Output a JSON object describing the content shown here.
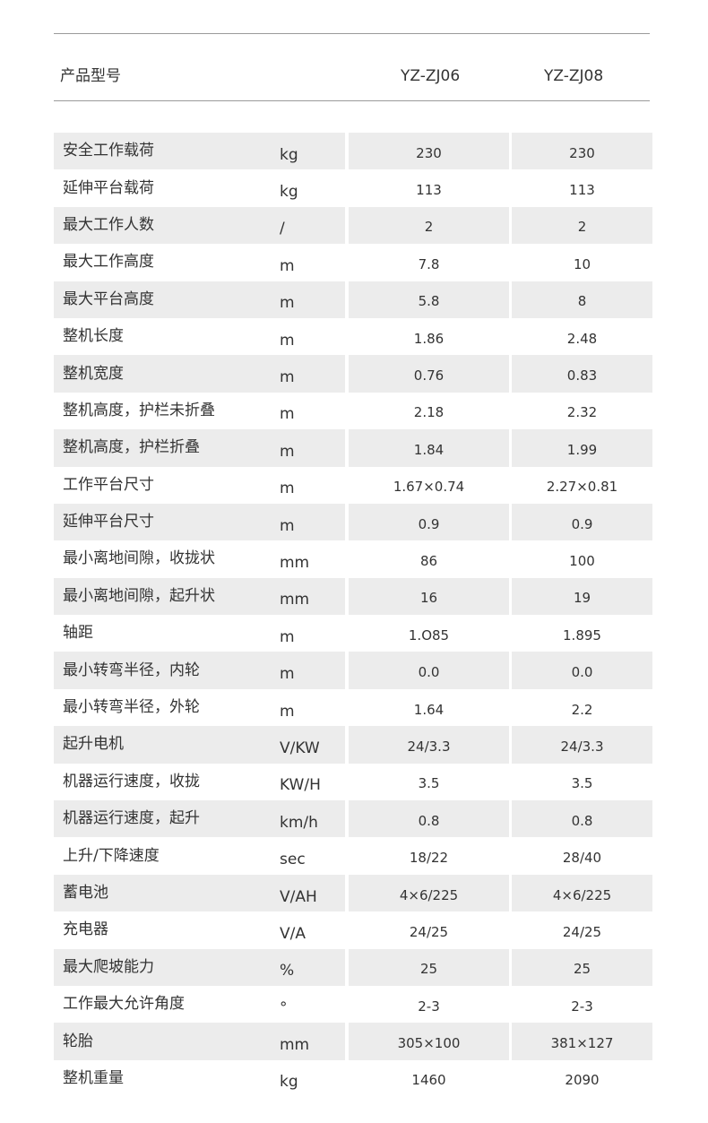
{
  "header": {
    "label": "产品型号",
    "models": [
      "YZ-ZJ06",
      "YZ-ZJ08"
    ]
  },
  "rows": [
    {
      "name": "安全工作载荷",
      "unit": "kg",
      "v1": "230",
      "v2": "230"
    },
    {
      "name": "延伸平台载荷",
      "unit": "kg",
      "v1": "113",
      "v2": "113"
    },
    {
      "name": "最大工作人数",
      "unit": "/",
      "v1": "2",
      "v2": "2"
    },
    {
      "name": "最大工作高度",
      "unit": "m",
      "v1": "7.8",
      "v2": "10"
    },
    {
      "name": "最大平台高度",
      "unit": "m",
      "v1": "5.8",
      "v2": "8"
    },
    {
      "name": "整机长度",
      "unit": "m",
      "v1": "1.86",
      "v2": "2.48"
    },
    {
      "name": "整机宽度",
      "unit": "m",
      "v1": "0.76",
      "v2": "0.83"
    },
    {
      "name": "整机高度，护栏未折叠",
      "unit": "m",
      "v1": "2.18",
      "v2": "2.32"
    },
    {
      "name": "整机高度，护栏折叠",
      "unit": "m",
      "v1": "1.84",
      "v2": "1.99"
    },
    {
      "name": "工作平台尺寸",
      "unit": "m",
      "v1": "1.67×0.74",
      "v2": "2.27×0.81"
    },
    {
      "name": "延伸平台尺寸",
      "unit": "m",
      "v1": "0.9",
      "v2": "0.9"
    },
    {
      "name": "最小离地间隙，收拢状",
      "unit": "mm",
      "v1": "86",
      "v2": "100"
    },
    {
      "name": "最小离地间隙，起升状",
      "unit": "mm",
      "v1": "16",
      "v2": "19"
    },
    {
      "name": "轴距",
      "unit": "m",
      "v1": "1.O85",
      "v2": "1.895"
    },
    {
      "name": "最小转弯半径，内轮",
      "unit": "m",
      "v1": "0.0",
      "v2": "0.0"
    },
    {
      "name": "最小转弯半径，外轮",
      "unit": "m",
      "v1": "1.64",
      "v2": "2.2"
    },
    {
      "name": "起升电机",
      "unit": "V/KW",
      "v1": "24/3.3",
      "v2": "24/3.3"
    },
    {
      "name": "机器运行速度，收拢",
      "unit": "KW/H",
      "v1": "3.5",
      "v2": "3.5"
    },
    {
      "name": "机器运行速度，起升",
      "unit": "km/h",
      "v1": "0.8",
      "v2": "0.8"
    },
    {
      "name": "上升/下降速度",
      "unit": "sec",
      "v1": "18/22",
      "v2": "28/40"
    },
    {
      "name": "蓄电池",
      "unit": "V/AH",
      "v1": "4×6/225",
      "v2": "4×6/225"
    },
    {
      "name": "充电器",
      "unit": "V/A",
      "v1": "24/25",
      "v2": "24/25"
    },
    {
      "name": "最大爬坡能力",
      "unit": "%",
      "v1": "25",
      "v2": "25"
    },
    {
      "name": "工作最大允许角度",
      "unit": "°",
      "v1": "2-3",
      "v2": "2-3"
    },
    {
      "name": "轮胎",
      "unit": "mm",
      "v1": "305×100",
      "v2": "381×127"
    },
    {
      "name": "整机重量",
      "unit": "kg",
      "v1": "1460",
      "v2": "2090"
    }
  ]
}
